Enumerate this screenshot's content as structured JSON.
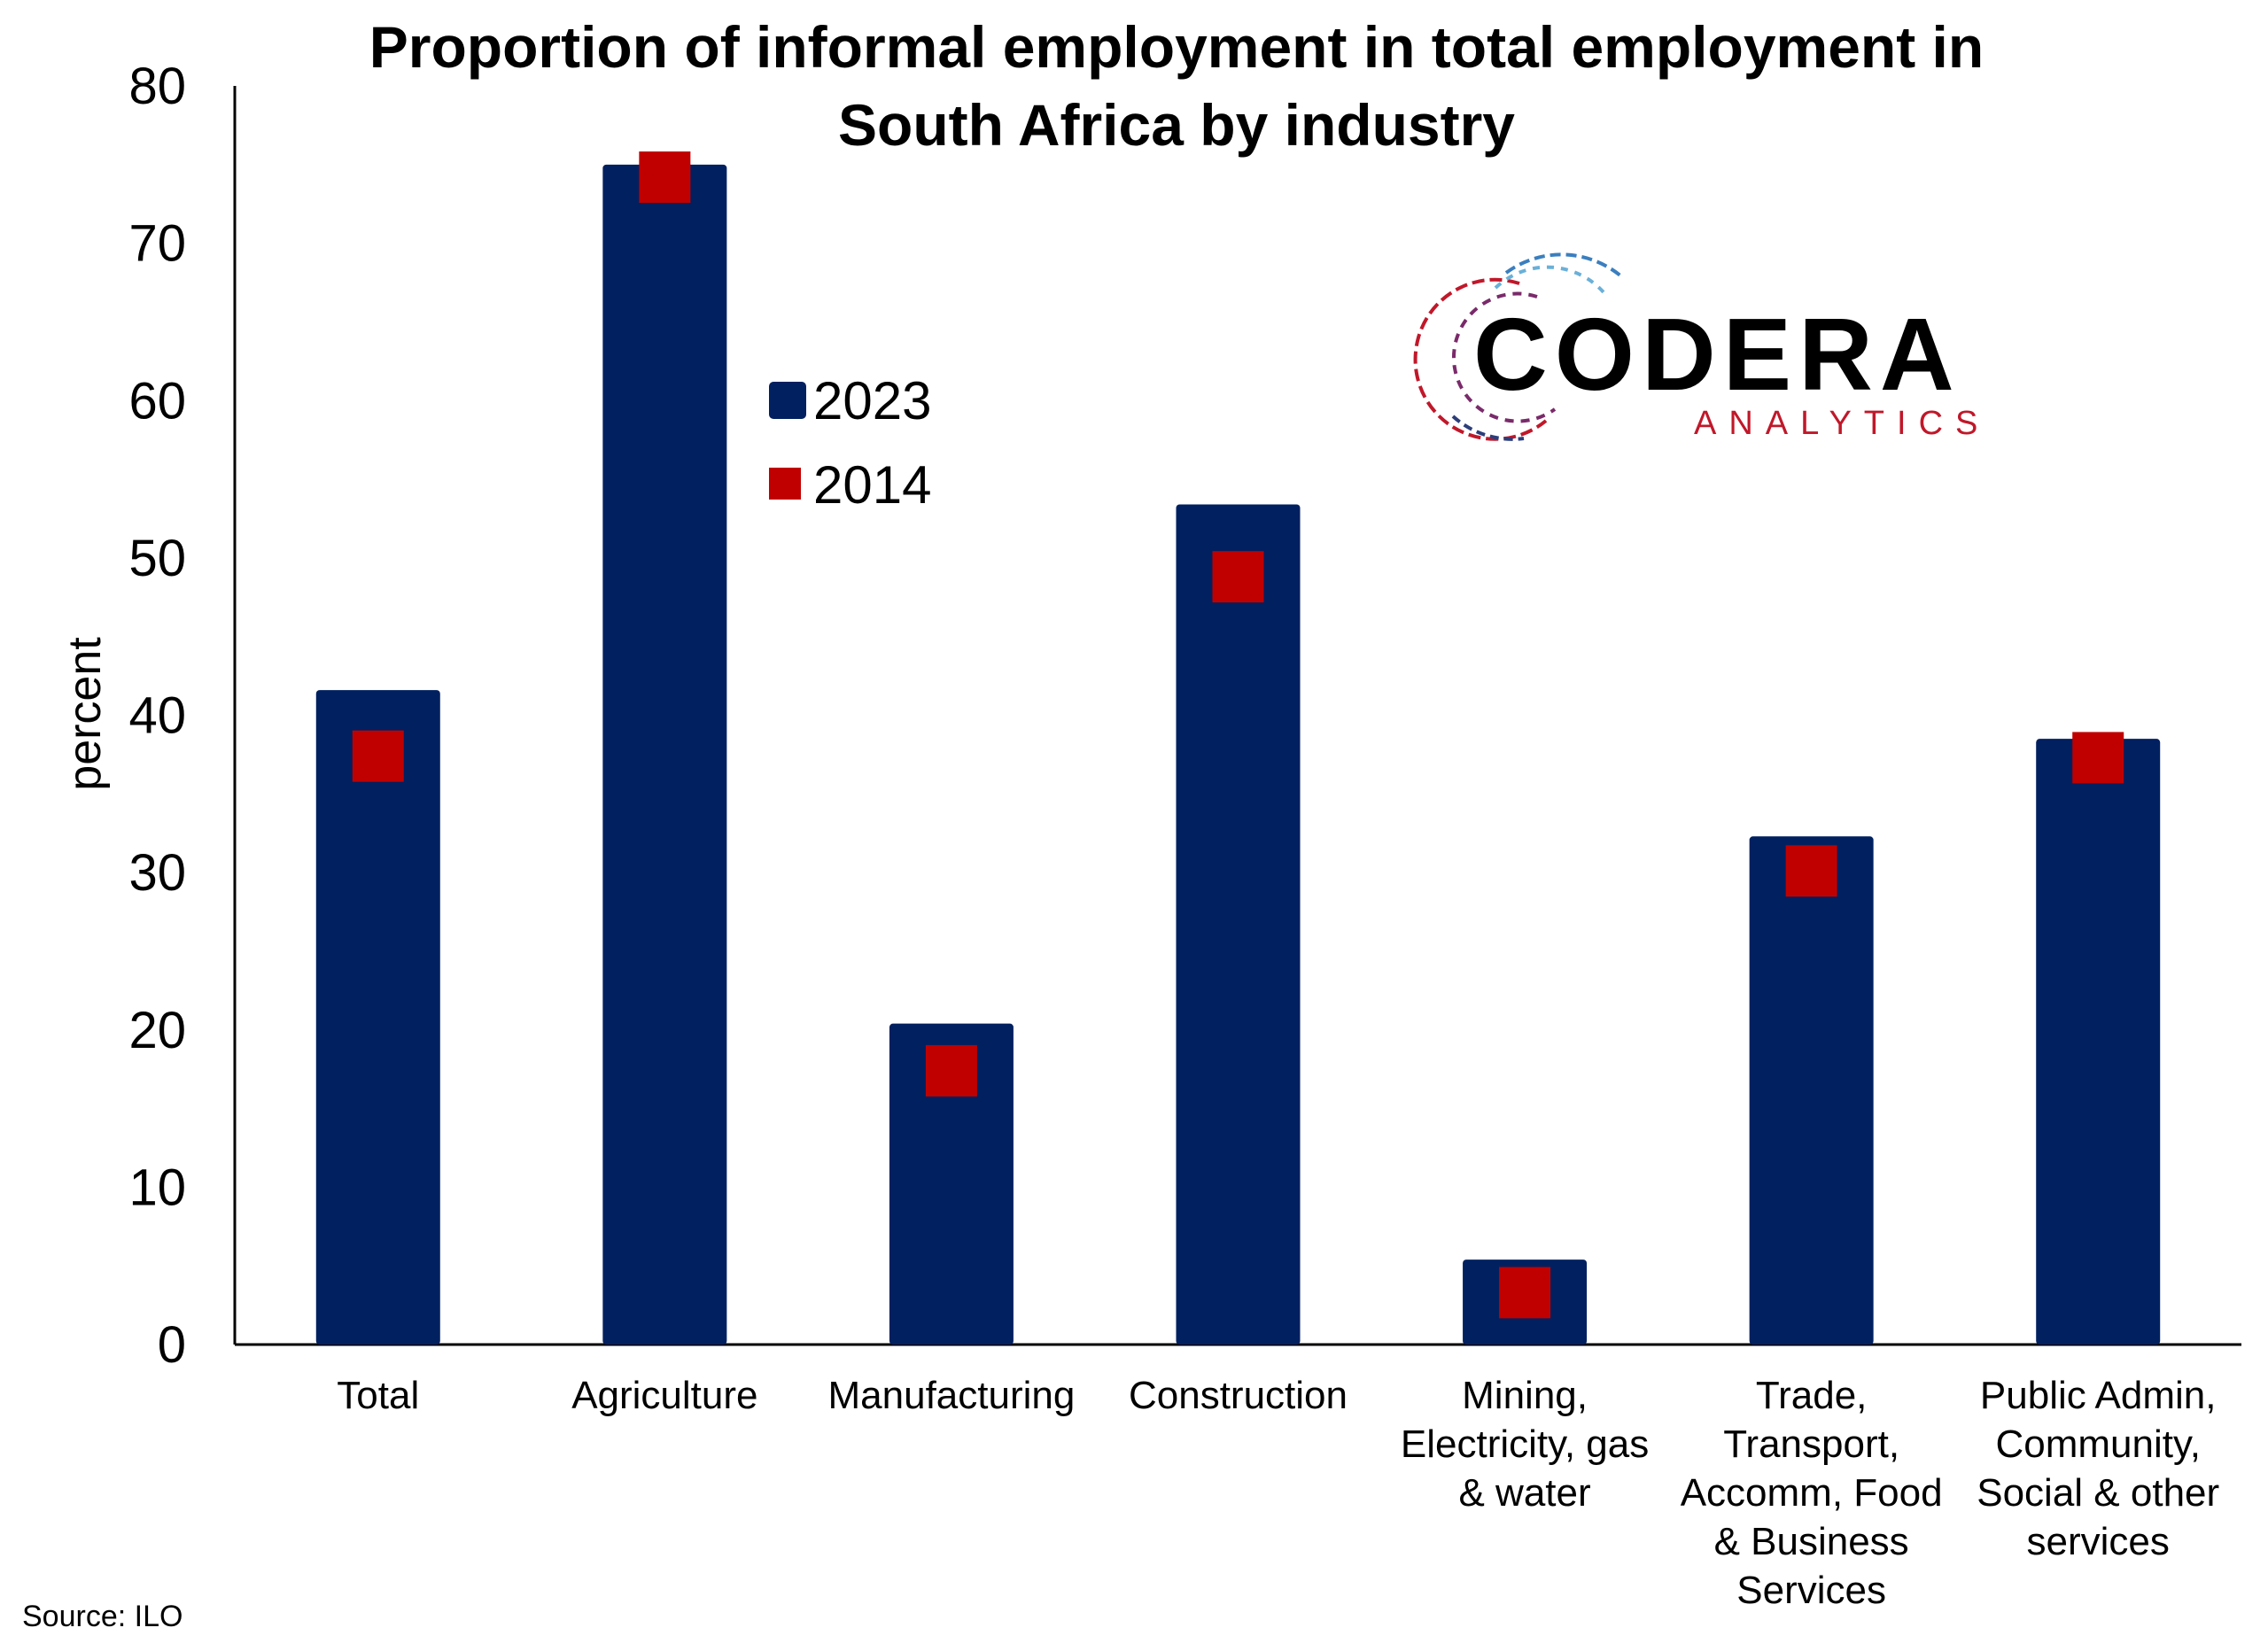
{
  "chart_data": {
    "type": "bar",
    "title_lines": [
      "Proportion of informal employment in total employment in",
      "South Africa by industry"
    ],
    "ylabel": "percent",
    "xlabel": "",
    "ylim": [
      0,
      80
    ],
    "yticks": [
      0,
      10,
      20,
      30,
      40,
      50,
      60,
      70,
      80
    ],
    "categories": [
      [
        "Total"
      ],
      [
        "Agriculture"
      ],
      [
        "Manufacturing"
      ],
      [
        "Construction"
      ],
      [
        "Mining,",
        "Electricity, gas",
        "& water"
      ],
      [
        "Trade,",
        "Transport,",
        "Accomm, Food",
        "& Business",
        "Services"
      ],
      [
        "Public Admin,",
        "Community,",
        "Social & other",
        "services"
      ]
    ],
    "series": [
      {
        "name": "2023",
        "type": "bar",
        "color": "#002060",
        "values": [
          41.6,
          75.0,
          20.4,
          53.4,
          5.4,
          32.3,
          38.5
        ]
      },
      {
        "name": "2014",
        "type": "marker",
        "color": "#c00000",
        "values": [
          37.4,
          74.2,
          17.4,
          48.8,
          3.3,
          30.1,
          37.3
        ]
      }
    ],
    "grid": false,
    "legend_position": "upper-left-center"
  },
  "source": "Source: ILO",
  "logo": {
    "main": "CODERA",
    "sub": "ANALYTICS"
  }
}
